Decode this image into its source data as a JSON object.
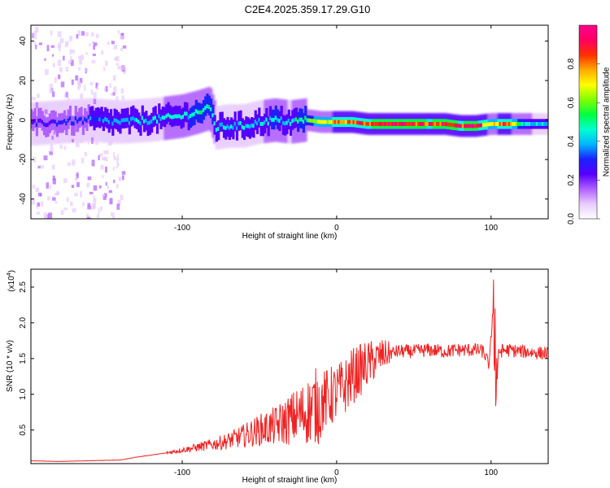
{
  "title": "C2E4.2025.359.17.29.G10",
  "chart_data": [
    {
      "type": "heatmap",
      "xlabel": "Height of straight line (km)",
      "ylabel": "Frequency (Hz)",
      "xlim": [
        -198,
        137
      ],
      "ylim": [
        -50,
        48
      ],
      "xticks": [
        -100,
        0,
        100
      ],
      "yticks": [
        -40,
        -20,
        0,
        20,
        40
      ],
      "colorbar": {
        "label": "Normalized spectral amplitude",
        "range": [
          0,
          1
        ],
        "ticks": [
          0.0,
          0.2,
          0.4,
          0.6,
          0.8
        ],
        "tick_labels": [
          "0.0",
          "0.2",
          "0.4",
          "0.6",
          "0.8"
        ],
        "colors": [
          "#ffffff",
          "#e8ccff",
          "#b060ff",
          "#5500ff",
          "#1a22ff",
          "#00b4ff",
          "#00ffd0",
          "#00ff40",
          "#80ff00",
          "#ffff00",
          "#ffaa00",
          "#ff3000",
          "#ff0060",
          "#ff0090"
        ]
      },
      "ridge": {
        "x": [
          -198,
          -180,
          -160,
          -140,
          -120,
          -100,
          -90,
          -82,
          -78,
          -70,
          -60,
          -50,
          -40,
          -30,
          -20,
          -10,
          0,
          10,
          20,
          30,
          40,
          50,
          60,
          70,
          80,
          90,
          100,
          110,
          120,
          137
        ],
        "freq": [
          -2,
          -1,
          0,
          -1,
          0,
          2,
          4,
          6,
          -4,
          -3,
          -3,
          -1,
          0,
          -1,
          0,
          -1,
          -1,
          -1,
          -2,
          -2,
          -2,
          -2,
          -2,
          -2,
          -3,
          -3,
          -2,
          -2,
          -2,
          -2
        ],
        "amplitude": [
          0.25,
          0.3,
          0.35,
          0.4,
          0.45,
          0.48,
          0.5,
          0.55,
          0.45,
          0.45,
          0.45,
          0.45,
          0.5,
          0.45,
          0.55,
          0.7,
          0.8,
          0.85,
          0.9,
          0.95,
          0.95,
          0.95,
          0.9,
          0.95,
          0.9,
          0.95,
          0.7,
          0.9,
          0.5,
          0.4
        ]
      }
    },
    {
      "type": "line",
      "xlabel": "Height of straight line (km)",
      "ylabel": "SNR (10 * v/v)",
      "scale_label": "(x10",
      "scale_exponent": "4",
      "scale_close": ")",
      "xlim": [
        -198,
        137
      ],
      "ylim": [
        0.03,
        2.75
      ],
      "xticks": [
        -100,
        0,
        100
      ],
      "yticks": [
        0.5,
        1.0,
        1.5,
        2.0,
        2.5
      ],
      "ytick_labels": [
        "0.5",
        "1.0",
        "1.5",
        "2.0",
        "2.5"
      ],
      "color": "#ee2222",
      "series": [
        {
          "name": "SNR",
          "x": [
            -198,
            -180,
            -160,
            -140,
            -130,
            -120,
            -110,
            -100,
            -90,
            -80,
            -70,
            -60,
            -50,
            -40,
            -30,
            -20,
            -10,
            -5,
            0,
            5,
            10,
            20,
            30,
            40,
            50,
            60,
            70,
            80,
            90,
            95,
            99,
            101,
            103,
            105,
            110,
            120,
            130,
            137
          ],
          "y": [
            0.07,
            0.06,
            0.07,
            0.08,
            0.12,
            0.15,
            0.18,
            0.22,
            0.26,
            0.3,
            0.35,
            0.42,
            0.5,
            0.55,
            0.65,
            0.75,
            0.88,
            0.95,
            1.02,
            1.1,
            1.25,
            1.42,
            1.55,
            1.6,
            1.6,
            1.62,
            1.6,
            1.62,
            1.62,
            1.6,
            1.4,
            2.2,
            0.85,
            1.6,
            1.62,
            1.6,
            1.58,
            1.57
          ]
        }
      ]
    }
  ]
}
